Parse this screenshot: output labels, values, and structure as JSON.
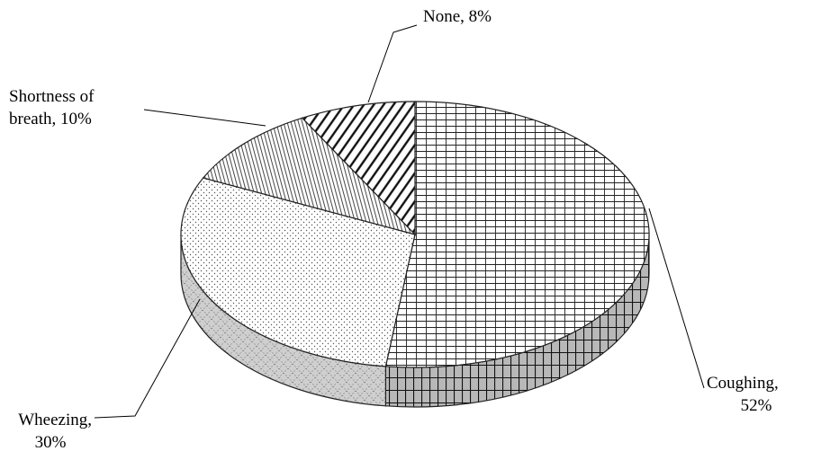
{
  "chart_data": {
    "type": "pie",
    "style": "3d",
    "title": "",
    "slices": [
      {
        "label": "Coughing",
        "value": 52,
        "pattern": "grid"
      },
      {
        "label": "Wheezing",
        "value": 30,
        "pattern": "dots"
      },
      {
        "label": "Shortness of breath",
        "value": 10,
        "pattern": "vertical-lines"
      },
      {
        "label": "None",
        "value": 8,
        "pattern": "diagonal-lines"
      }
    ],
    "data_labels": [
      {
        "lines": [
          "None, 8%"
        ]
      },
      {
        "lines": [
          "Shortness of",
          "breath, 10%"
        ]
      },
      {
        "lines": [
          "Coughing,",
          "52%"
        ]
      },
      {
        "lines": [
          "Wheezing,",
          "30%"
        ]
      }
    ],
    "colors": {
      "outline": "#222222",
      "background": "#ffffff"
    }
  }
}
